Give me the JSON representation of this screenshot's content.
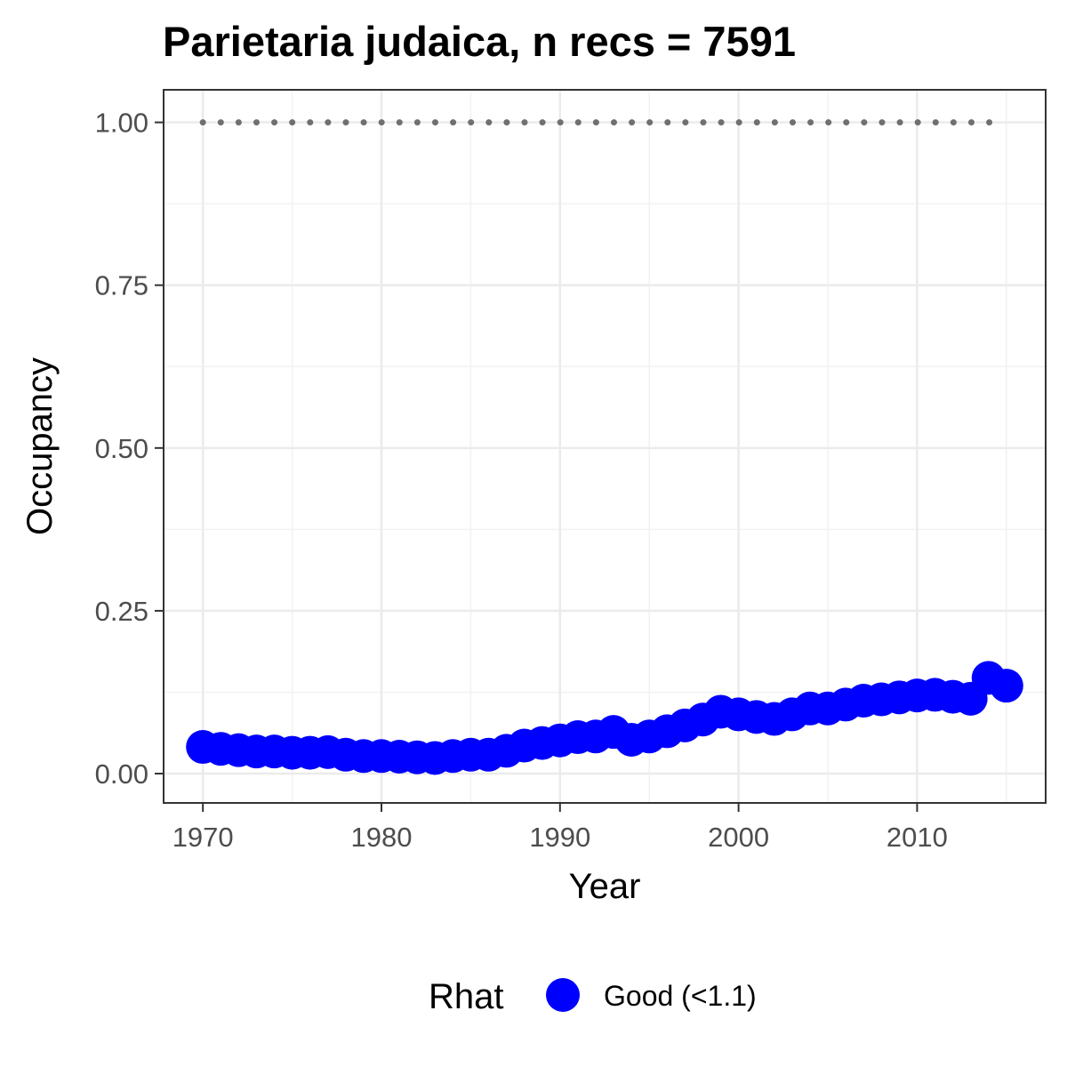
{
  "chart_data": {
    "type": "line",
    "title": "Parietaria judaica, n recs = 7591",
    "xlabel": "Year",
    "ylabel": "Occupancy",
    "xlim": [
      1967.8,
      2017.2
    ],
    "ylim": [
      -0.045,
      1.05
    ],
    "xticks": [
      {
        "value": 1970,
        "label": "1970"
      },
      {
        "value": 1980,
        "label": "1980"
      },
      {
        "value": 1990,
        "label": "1990"
      },
      {
        "value": 2000,
        "label": "2000"
      },
      {
        "value": 2010,
        "label": "2010"
      }
    ],
    "yticks": [
      {
        "value": 0,
        "label": "0.00"
      },
      {
        "value": 0.25,
        "label": "0.25"
      },
      {
        "value": 0.5,
        "label": "0.50"
      },
      {
        "value": 0.75,
        "label": "0.75"
      },
      {
        "value": 1,
        "label": "1.00"
      }
    ],
    "grid": true,
    "legend": {
      "position": "bottom",
      "title": "Rhat",
      "entries": [
        {
          "label": "Good (<1.1)",
          "color": "#0000ff"
        }
      ]
    },
    "series": [
      {
        "name": "Good (<1.1)",
        "color": "#0000ff",
        "style": "line-with-points",
        "points": [
          {
            "x": 1970,
            "y": 0.041
          },
          {
            "x": 1971,
            "y": 0.038
          },
          {
            "x": 1972,
            "y": 0.036
          },
          {
            "x": 1973,
            "y": 0.034
          },
          {
            "x": 1974,
            "y": 0.034
          },
          {
            "x": 1975,
            "y": 0.032
          },
          {
            "x": 1976,
            "y": 0.032
          },
          {
            "x": 1977,
            "y": 0.033
          },
          {
            "x": 1978,
            "y": 0.029
          },
          {
            "x": 1979,
            "y": 0.027
          },
          {
            "x": 1980,
            "y": 0.027
          },
          {
            "x": 1981,
            "y": 0.026
          },
          {
            "x": 1982,
            "y": 0.025
          },
          {
            "x": 1983,
            "y": 0.024
          },
          {
            "x": 1984,
            "y": 0.027
          },
          {
            "x": 1985,
            "y": 0.029
          },
          {
            "x": 1986,
            "y": 0.029
          },
          {
            "x": 1987,
            "y": 0.035
          },
          {
            "x": 1988,
            "y": 0.043
          },
          {
            "x": 1989,
            "y": 0.047
          },
          {
            "x": 1990,
            "y": 0.051
          },
          {
            "x": 1991,
            "y": 0.056
          },
          {
            "x": 1992,
            "y": 0.057
          },
          {
            "x": 1993,
            "y": 0.064
          },
          {
            "x": 1994,
            "y": 0.052
          },
          {
            "x": 1995,
            "y": 0.057
          },
          {
            "x": 1996,
            "y": 0.065
          },
          {
            "x": 1997,
            "y": 0.074
          },
          {
            "x": 1998,
            "y": 0.083
          },
          {
            "x": 1999,
            "y": 0.095
          },
          {
            "x": 2000,
            "y": 0.091
          },
          {
            "x": 2001,
            "y": 0.087
          },
          {
            "x": 2002,
            "y": 0.084
          },
          {
            "x": 2003,
            "y": 0.091
          },
          {
            "x": 2004,
            "y": 0.1
          },
          {
            "x": 2005,
            "y": 0.1
          },
          {
            "x": 2006,
            "y": 0.106
          },
          {
            "x": 2007,
            "y": 0.112
          },
          {
            "x": 2008,
            "y": 0.114
          },
          {
            "x": 2009,
            "y": 0.117
          },
          {
            "x": 2010,
            "y": 0.12
          },
          {
            "x": 2011,
            "y": 0.121
          },
          {
            "x": 2012,
            "y": 0.118
          },
          {
            "x": 2013,
            "y": 0.115
          },
          {
            "x": 2014,
            "y": 0.147
          },
          {
            "x": 2015,
            "y": 0.135
          }
        ]
      },
      {
        "style": "dotted-line",
        "color": "#707070",
        "x": [
          1970,
          2015
        ],
        "y": [
          1,
          1
        ]
      }
    ]
  }
}
